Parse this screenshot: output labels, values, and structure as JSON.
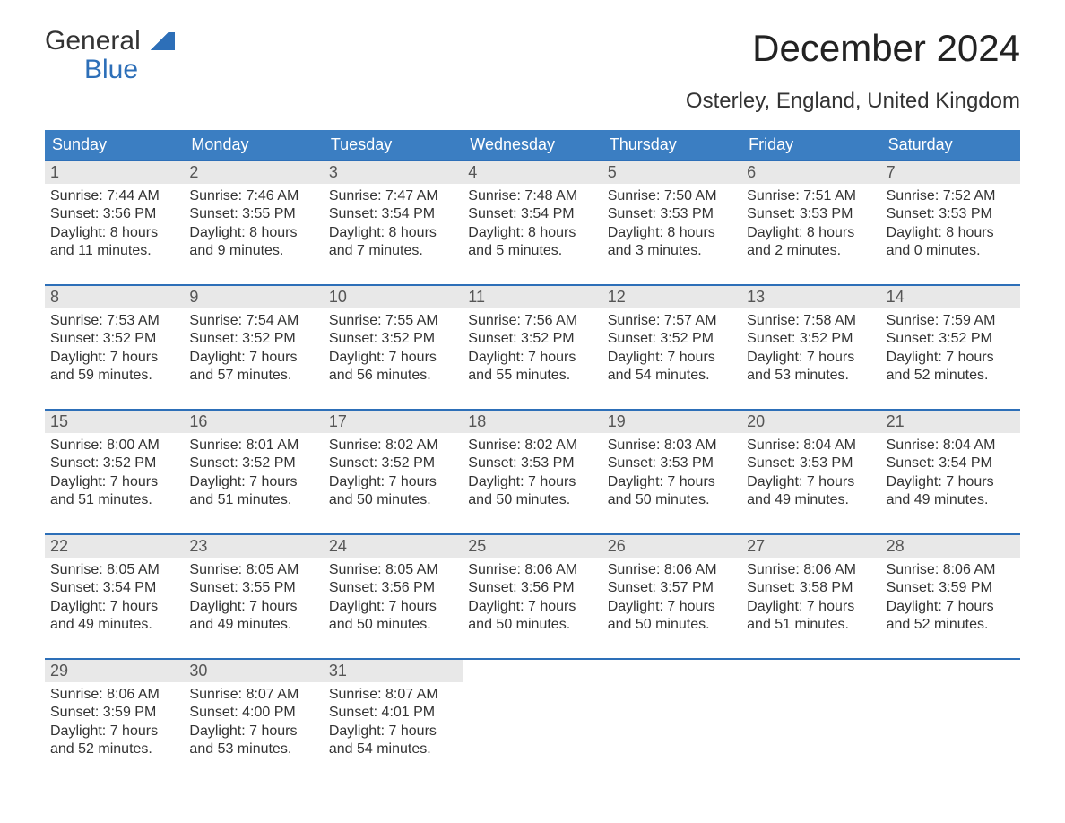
{
  "logo": {
    "line1": "General",
    "line2": "Blue"
  },
  "title": "December 2024",
  "subtitle": "Osterley, England, United Kingdom",
  "colors": {
    "header_bg": "#3b7ec2",
    "accent": "#2d6fb8",
    "daynum_bg": "#e8e8e8",
    "background": "#ffffff",
    "text": "#333333"
  },
  "fonts": {
    "title_size_pt": 32,
    "subtitle_size_pt": 18,
    "dow_size_pt": 14,
    "cell_size_pt": 12
  },
  "days_of_week": [
    "Sunday",
    "Monday",
    "Tuesday",
    "Wednesday",
    "Thursday",
    "Friday",
    "Saturday"
  ],
  "weeks": [
    [
      {
        "n": "1",
        "sunrise": "7:44 AM",
        "sunset": "3:56 PM",
        "dl1": "8 hours",
        "dl2": "11 minutes."
      },
      {
        "n": "2",
        "sunrise": "7:46 AM",
        "sunset": "3:55 PM",
        "dl1": "8 hours",
        "dl2": "9 minutes."
      },
      {
        "n": "3",
        "sunrise": "7:47 AM",
        "sunset": "3:54 PM",
        "dl1": "8 hours",
        "dl2": "7 minutes."
      },
      {
        "n": "4",
        "sunrise": "7:48 AM",
        "sunset": "3:54 PM",
        "dl1": "8 hours",
        "dl2": "5 minutes."
      },
      {
        "n": "5",
        "sunrise": "7:50 AM",
        "sunset": "3:53 PM",
        "dl1": "8 hours",
        "dl2": "3 minutes."
      },
      {
        "n": "6",
        "sunrise": "7:51 AM",
        "sunset": "3:53 PM",
        "dl1": "8 hours",
        "dl2": "2 minutes."
      },
      {
        "n": "7",
        "sunrise": "7:52 AM",
        "sunset": "3:53 PM",
        "dl1": "8 hours",
        "dl2": "0 minutes."
      }
    ],
    [
      {
        "n": "8",
        "sunrise": "7:53 AM",
        "sunset": "3:52 PM",
        "dl1": "7 hours",
        "dl2": "59 minutes."
      },
      {
        "n": "9",
        "sunrise": "7:54 AM",
        "sunset": "3:52 PM",
        "dl1": "7 hours",
        "dl2": "57 minutes."
      },
      {
        "n": "10",
        "sunrise": "7:55 AM",
        "sunset": "3:52 PM",
        "dl1": "7 hours",
        "dl2": "56 minutes."
      },
      {
        "n": "11",
        "sunrise": "7:56 AM",
        "sunset": "3:52 PM",
        "dl1": "7 hours",
        "dl2": "55 minutes."
      },
      {
        "n": "12",
        "sunrise": "7:57 AM",
        "sunset": "3:52 PM",
        "dl1": "7 hours",
        "dl2": "54 minutes."
      },
      {
        "n": "13",
        "sunrise": "7:58 AM",
        "sunset": "3:52 PM",
        "dl1": "7 hours",
        "dl2": "53 minutes."
      },
      {
        "n": "14",
        "sunrise": "7:59 AM",
        "sunset": "3:52 PM",
        "dl1": "7 hours",
        "dl2": "52 minutes."
      }
    ],
    [
      {
        "n": "15",
        "sunrise": "8:00 AM",
        "sunset": "3:52 PM",
        "dl1": "7 hours",
        "dl2": "51 minutes."
      },
      {
        "n": "16",
        "sunrise": "8:01 AM",
        "sunset": "3:52 PM",
        "dl1": "7 hours",
        "dl2": "51 minutes."
      },
      {
        "n": "17",
        "sunrise": "8:02 AM",
        "sunset": "3:52 PM",
        "dl1": "7 hours",
        "dl2": "50 minutes."
      },
      {
        "n": "18",
        "sunrise": "8:02 AM",
        "sunset": "3:53 PM",
        "dl1": "7 hours",
        "dl2": "50 minutes."
      },
      {
        "n": "19",
        "sunrise": "8:03 AM",
        "sunset": "3:53 PM",
        "dl1": "7 hours",
        "dl2": "50 minutes."
      },
      {
        "n": "20",
        "sunrise": "8:04 AM",
        "sunset": "3:53 PM",
        "dl1": "7 hours",
        "dl2": "49 minutes."
      },
      {
        "n": "21",
        "sunrise": "8:04 AM",
        "sunset": "3:54 PM",
        "dl1": "7 hours",
        "dl2": "49 minutes."
      }
    ],
    [
      {
        "n": "22",
        "sunrise": "8:05 AM",
        "sunset": "3:54 PM",
        "dl1": "7 hours",
        "dl2": "49 minutes."
      },
      {
        "n": "23",
        "sunrise": "8:05 AM",
        "sunset": "3:55 PM",
        "dl1": "7 hours",
        "dl2": "49 minutes."
      },
      {
        "n": "24",
        "sunrise": "8:05 AM",
        "sunset": "3:56 PM",
        "dl1": "7 hours",
        "dl2": "50 minutes."
      },
      {
        "n": "25",
        "sunrise": "8:06 AM",
        "sunset": "3:56 PM",
        "dl1": "7 hours",
        "dl2": "50 minutes."
      },
      {
        "n": "26",
        "sunrise": "8:06 AM",
        "sunset": "3:57 PM",
        "dl1": "7 hours",
        "dl2": "50 minutes."
      },
      {
        "n": "27",
        "sunrise": "8:06 AM",
        "sunset": "3:58 PM",
        "dl1": "7 hours",
        "dl2": "51 minutes."
      },
      {
        "n": "28",
        "sunrise": "8:06 AM",
        "sunset": "3:59 PM",
        "dl1": "7 hours",
        "dl2": "52 minutes."
      }
    ],
    [
      {
        "n": "29",
        "sunrise": "8:06 AM",
        "sunset": "3:59 PM",
        "dl1": "7 hours",
        "dl2": "52 minutes."
      },
      {
        "n": "30",
        "sunrise": "8:07 AM",
        "sunset": "4:00 PM",
        "dl1": "7 hours",
        "dl2": "53 minutes."
      },
      {
        "n": "31",
        "sunrise": "8:07 AM",
        "sunset": "4:01 PM",
        "dl1": "7 hours",
        "dl2": "54 minutes."
      },
      null,
      null,
      null,
      null
    ]
  ],
  "labels": {
    "sunrise_prefix": "Sunrise: ",
    "sunset_prefix": "Sunset: ",
    "daylight_prefix": "Daylight: ",
    "and_prefix": "and "
  }
}
